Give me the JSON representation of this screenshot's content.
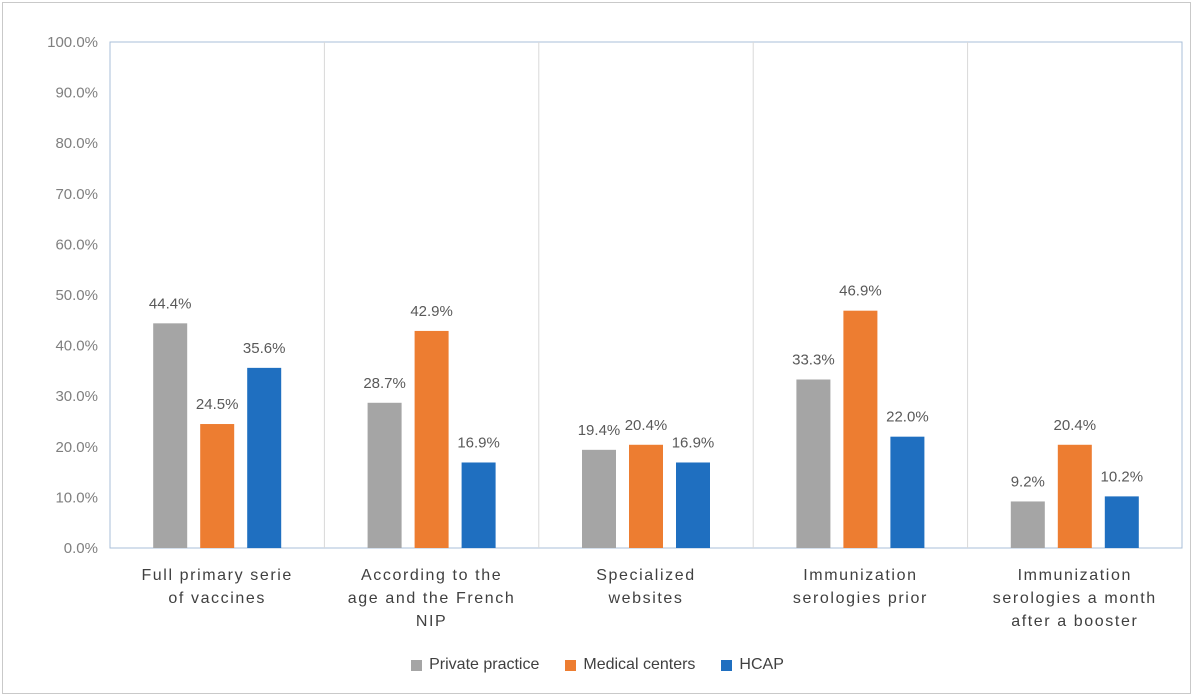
{
  "chart_data": {
    "type": "bar",
    "title": "",
    "xlabel": "",
    "ylabel": "",
    "ylim": [
      0,
      100
    ],
    "ytick_step": 10,
    "ytick_labels": [
      "0.0%",
      "10.0%",
      "20.0%",
      "30.0%",
      "40.0%",
      "50.0%",
      "60.0%",
      "70.0%",
      "80.0%",
      "90.0%",
      "100.0%"
    ],
    "grid": "vertical category separators",
    "legend_position": "bottom",
    "categories": [
      [
        "Full primary serie",
        "of vaccines"
      ],
      [
        "According to the",
        "age and the French",
        "NIP"
      ],
      [
        "Specialized",
        "websites"
      ],
      [
        "Immunization",
        "serologies prior"
      ],
      [
        "Immunization",
        "serologies a month",
        "after a booster"
      ]
    ],
    "series": [
      {
        "name": "Private practice",
        "color": "#a5a5a5",
        "values": [
          44.4,
          28.7,
          19.4,
          33.3,
          9.2
        ],
        "labels": [
          "44.4%",
          "28.7%",
          "19.4%",
          "33.3%",
          "9.2%"
        ]
      },
      {
        "name": "Medical centers",
        "color": "#ed7d31",
        "values": [
          24.5,
          42.9,
          20.4,
          46.9,
          20.4
        ],
        "labels": [
          "24.5%",
          "42.9%",
          "20.4%",
          "46.9%",
          "20.4%"
        ]
      },
      {
        "name": "HCAP",
        "color": "#1f6fc0",
        "values": [
          35.6,
          16.9,
          16.9,
          22.0,
          10.2
        ],
        "labels": [
          "35.6%",
          "16.9%",
          "16.9%",
          "22.0%",
          "10.2%"
        ]
      }
    ]
  }
}
